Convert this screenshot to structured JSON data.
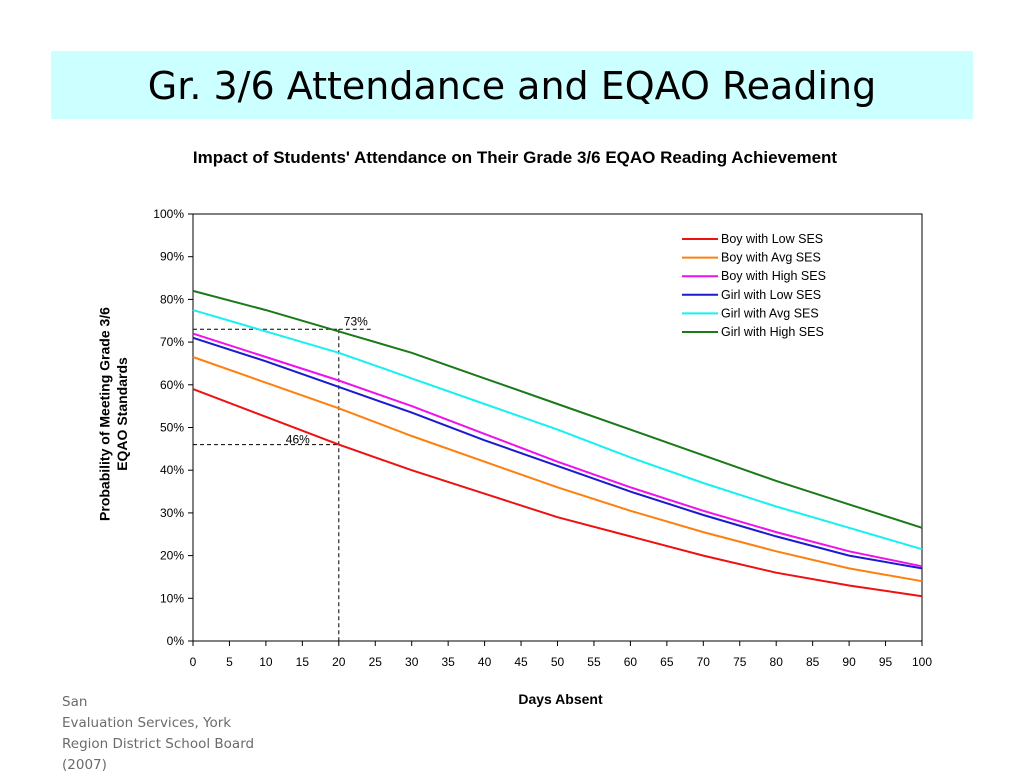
{
  "slide": {
    "title": "Gr. 3/6 Attendance and EQAO Reading"
  },
  "credit": {
    "lines": [
      "San",
      "Evaluation Services, York",
      "Region District School Board",
      "(2007)"
    ]
  },
  "chart_data": {
    "type": "line",
    "title": "Impact of Students' Attendance on Their Grade 3/6 EQAO Reading Achievement",
    "xlabel": "Days Absent",
    "ylabel": "Probability of Meeting Grade 3/6 EQAO Standards",
    "xlim": [
      0,
      100
    ],
    "ylim": [
      0,
      1
    ],
    "x_ticks": [
      "0",
      "5",
      "10",
      "15",
      "20",
      "25",
      "30",
      "35",
      "40",
      "45",
      "50",
      "55",
      "60",
      "65",
      "70",
      "75",
      "80",
      "85",
      "90",
      "95",
      "100"
    ],
    "y_ticks": [
      "0%",
      "10%",
      "20%",
      "30%",
      "40%",
      "50%",
      "60%",
      "70%",
      "80%",
      "90%",
      "100%"
    ],
    "grid": false,
    "legend_position": "top-right",
    "x": [
      0,
      10,
      20,
      30,
      40,
      50,
      60,
      70,
      80,
      90,
      100
    ],
    "series": [
      {
        "name": "Boy with Low SES",
        "color": "#ee1111",
        "values": [
          0.59,
          0.525,
          0.46,
          0.4,
          0.345,
          0.29,
          0.245,
          0.2,
          0.16,
          0.13,
          0.105
        ]
      },
      {
        "name": "Boy with Avg SES",
        "color": "#ff7f0e",
        "values": [
          0.665,
          0.605,
          0.545,
          0.48,
          0.42,
          0.36,
          0.305,
          0.255,
          0.21,
          0.17,
          0.14
        ]
      },
      {
        "name": "Boy with High SES",
        "color": "#ee11ee",
        "values": [
          0.72,
          0.665,
          0.61,
          0.55,
          0.485,
          0.42,
          0.36,
          0.305,
          0.255,
          0.21,
          0.175
        ]
      },
      {
        "name": "Girl with Low SES",
        "color": "#1a1ad1",
        "values": [
          0.71,
          0.655,
          0.595,
          0.535,
          0.47,
          0.41,
          0.35,
          0.295,
          0.245,
          0.2,
          0.17
        ]
      },
      {
        "name": "Girl with Avg SES",
        "color": "#17f0f0",
        "values": [
          0.775,
          0.725,
          0.675,
          0.615,
          0.555,
          0.495,
          0.43,
          0.37,
          0.315,
          0.265,
          0.215
        ]
      },
      {
        "name": "Girl with High SES",
        "color": "#1a7a1a",
        "values": [
          0.82,
          0.775,
          0.725,
          0.675,
          0.615,
          0.555,
          0.495,
          0.435,
          0.375,
          0.32,
          0.265
        ]
      }
    ],
    "annotations": [
      {
        "text": "73%",
        "x": 20,
        "y": 0.73
      },
      {
        "text": "46%",
        "x": 20,
        "y": 0.46
      }
    ]
  }
}
